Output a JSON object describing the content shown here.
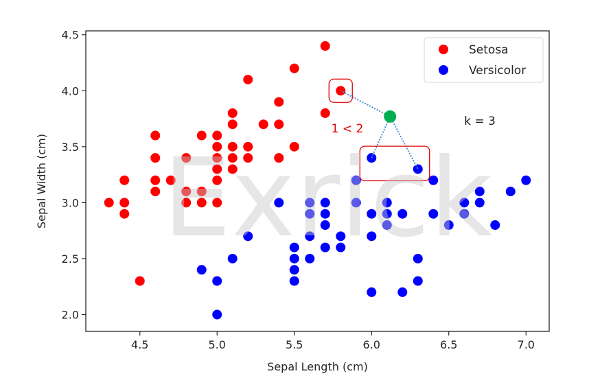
{
  "chart_data": {
    "type": "scatter",
    "title": "",
    "xlabel": "Sepal Length (cm)",
    "ylabel": "Sepal Width (cm)",
    "xlim": [
      4.15,
      7.15
    ],
    "ylim": [
      1.85,
      4.535
    ],
    "xticks": [
      4.5,
      5.0,
      5.5,
      6.0,
      6.5,
      7.0
    ],
    "xtick_labels": [
      "4.5",
      "5.0",
      "5.5",
      "6.0",
      "6.5",
      "7.0"
    ],
    "yticks": [
      2.0,
      2.5,
      3.0,
      3.5,
      4.0,
      4.5
    ],
    "ytick_labels": [
      "2.0",
      "2.5",
      "3.0",
      "3.5",
      "4.0",
      "4.5"
    ],
    "grid": false,
    "legend_position": "top-right",
    "series": [
      {
        "name": "Setosa",
        "color": "#ff0000",
        "points": [
          [
            4.3,
            3.0
          ],
          [
            4.4,
            3.2
          ],
          [
            4.4,
            3.0
          ],
          [
            4.4,
            2.9
          ],
          [
            4.5,
            2.3
          ],
          [
            4.6,
            3.6
          ],
          [
            4.6,
            3.4
          ],
          [
            4.6,
            3.2
          ],
          [
            4.6,
            3.1
          ],
          [
            4.7,
            3.2
          ],
          [
            4.8,
            3.4
          ],
          [
            4.8,
            3.1
          ],
          [
            4.8,
            3.0
          ],
          [
            4.9,
            3.6
          ],
          [
            4.9,
            3.1
          ],
          [
            4.9,
            3.0
          ],
          [
            5.0,
            3.6
          ],
          [
            5.0,
            3.5
          ],
          [
            5.0,
            3.4
          ],
          [
            5.0,
            3.3
          ],
          [
            5.0,
            3.2
          ],
          [
            5.0,
            3.0
          ],
          [
            5.1,
            3.8
          ],
          [
            5.1,
            3.7
          ],
          [
            5.1,
            3.5
          ],
          [
            5.1,
            3.4
          ],
          [
            5.1,
            3.3
          ],
          [
            5.2,
            4.1
          ],
          [
            5.2,
            3.5
          ],
          [
            5.2,
            3.4
          ],
          [
            5.3,
            3.7
          ],
          [
            5.4,
            3.9
          ],
          [
            5.4,
            3.7
          ],
          [
            5.4,
            3.4
          ],
          [
            5.5,
            4.2
          ],
          [
            5.5,
            3.5
          ],
          [
            5.7,
            4.4
          ],
          [
            5.7,
            3.8
          ],
          [
            5.8,
            4.0
          ]
        ]
      },
      {
        "name": "Versicolor",
        "color": "#0000ff",
        "points": [
          [
            4.9,
            2.4
          ],
          [
            5.0,
            2.3
          ],
          [
            5.0,
            2.0
          ],
          [
            5.1,
            2.5
          ],
          [
            5.2,
            2.7
          ],
          [
            5.4,
            3.0
          ],
          [
            5.5,
            2.6
          ],
          [
            5.5,
            2.5
          ],
          [
            5.5,
            2.4
          ],
          [
            5.5,
            2.3
          ],
          [
            5.6,
            3.0
          ],
          [
            5.6,
            2.9
          ],
          [
            5.6,
            2.7
          ],
          [
            5.6,
            2.5
          ],
          [
            5.7,
            3.0
          ],
          [
            5.7,
            2.9
          ],
          [
            5.7,
            2.8
          ],
          [
            5.7,
            2.6
          ],
          [
            5.8,
            2.7
          ],
          [
            5.8,
            2.6
          ],
          [
            5.9,
            3.2
          ],
          [
            5.9,
            3.0
          ],
          [
            6.0,
            3.4
          ],
          [
            6.0,
            2.9
          ],
          [
            6.0,
            2.7
          ],
          [
            6.0,
            2.2
          ],
          [
            6.1,
            3.0
          ],
          [
            6.1,
            2.9
          ],
          [
            6.1,
            2.8
          ],
          [
            6.2,
            2.9
          ],
          [
            6.2,
            2.2
          ],
          [
            6.3,
            3.3
          ],
          [
            6.3,
            2.5
          ],
          [
            6.3,
            2.3
          ],
          [
            6.4,
            3.2
          ],
          [
            6.4,
            2.9
          ],
          [
            6.5,
            2.8
          ],
          [
            6.6,
            3.0
          ],
          [
            6.6,
            2.9
          ],
          [
            6.7,
            3.1
          ],
          [
            6.7,
            3.0
          ],
          [
            6.8,
            2.8
          ],
          [
            6.9,
            3.1
          ],
          [
            7.0,
            3.2
          ]
        ]
      }
    ],
    "annotations": {
      "query_point": {
        "x": 6.12,
        "y": 3.77,
        "color": "#00b050"
      },
      "neighbors": [
        [
          5.8,
          4.0
        ],
        [
          6.0,
          3.4
        ],
        [
          6.3,
          3.3
        ]
      ],
      "neighbor_groups": [
        {
          "class": "Setosa",
          "points": [
            [
              5.8,
              4.0
            ]
          ]
        },
        {
          "class": "Versicolor",
          "points": [
            [
              6.0,
              3.4
            ],
            [
              6.3,
              3.3
            ]
          ]
        }
      ],
      "comparison_text": "1 < 2",
      "k_text": "k = 3",
      "highlight_color": "#e00000",
      "line_color": "#4a90d9"
    },
    "watermark": "Exrick"
  }
}
